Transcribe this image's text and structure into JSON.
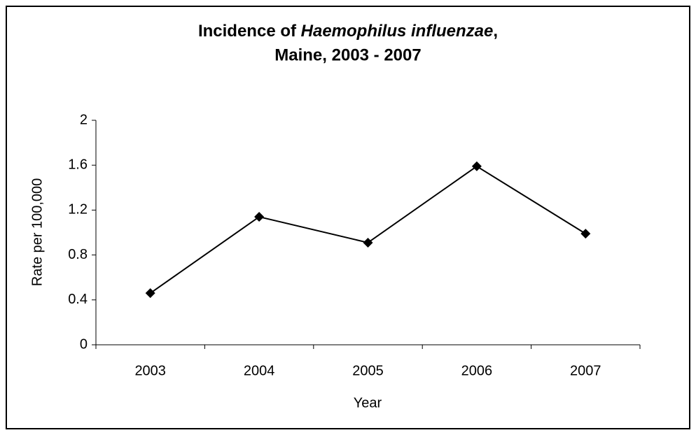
{
  "chart_data": {
    "type": "line",
    "title": {
      "line1": [
        "Incidence of",
        "Haemophilus influenzae",
        ","
      ],
      "line2": "Maine, 2003 - 2007"
    },
    "x_label": "Year",
    "y_label": "Rate per 100,000",
    "categories": [
      "2003",
      "2004",
      "2005",
      "2006",
      "2007"
    ],
    "series": [
      {
        "name": "Rate",
        "color": "#000000",
        "values": [
          0.46,
          1.14,
          0.91,
          1.59,
          0.99
        ]
      }
    ],
    "ylim": [
      0,
      2
    ],
    "yticks": [
      0,
      0.4,
      0.8,
      1.2,
      1.6,
      2
    ],
    "grid": false
  }
}
